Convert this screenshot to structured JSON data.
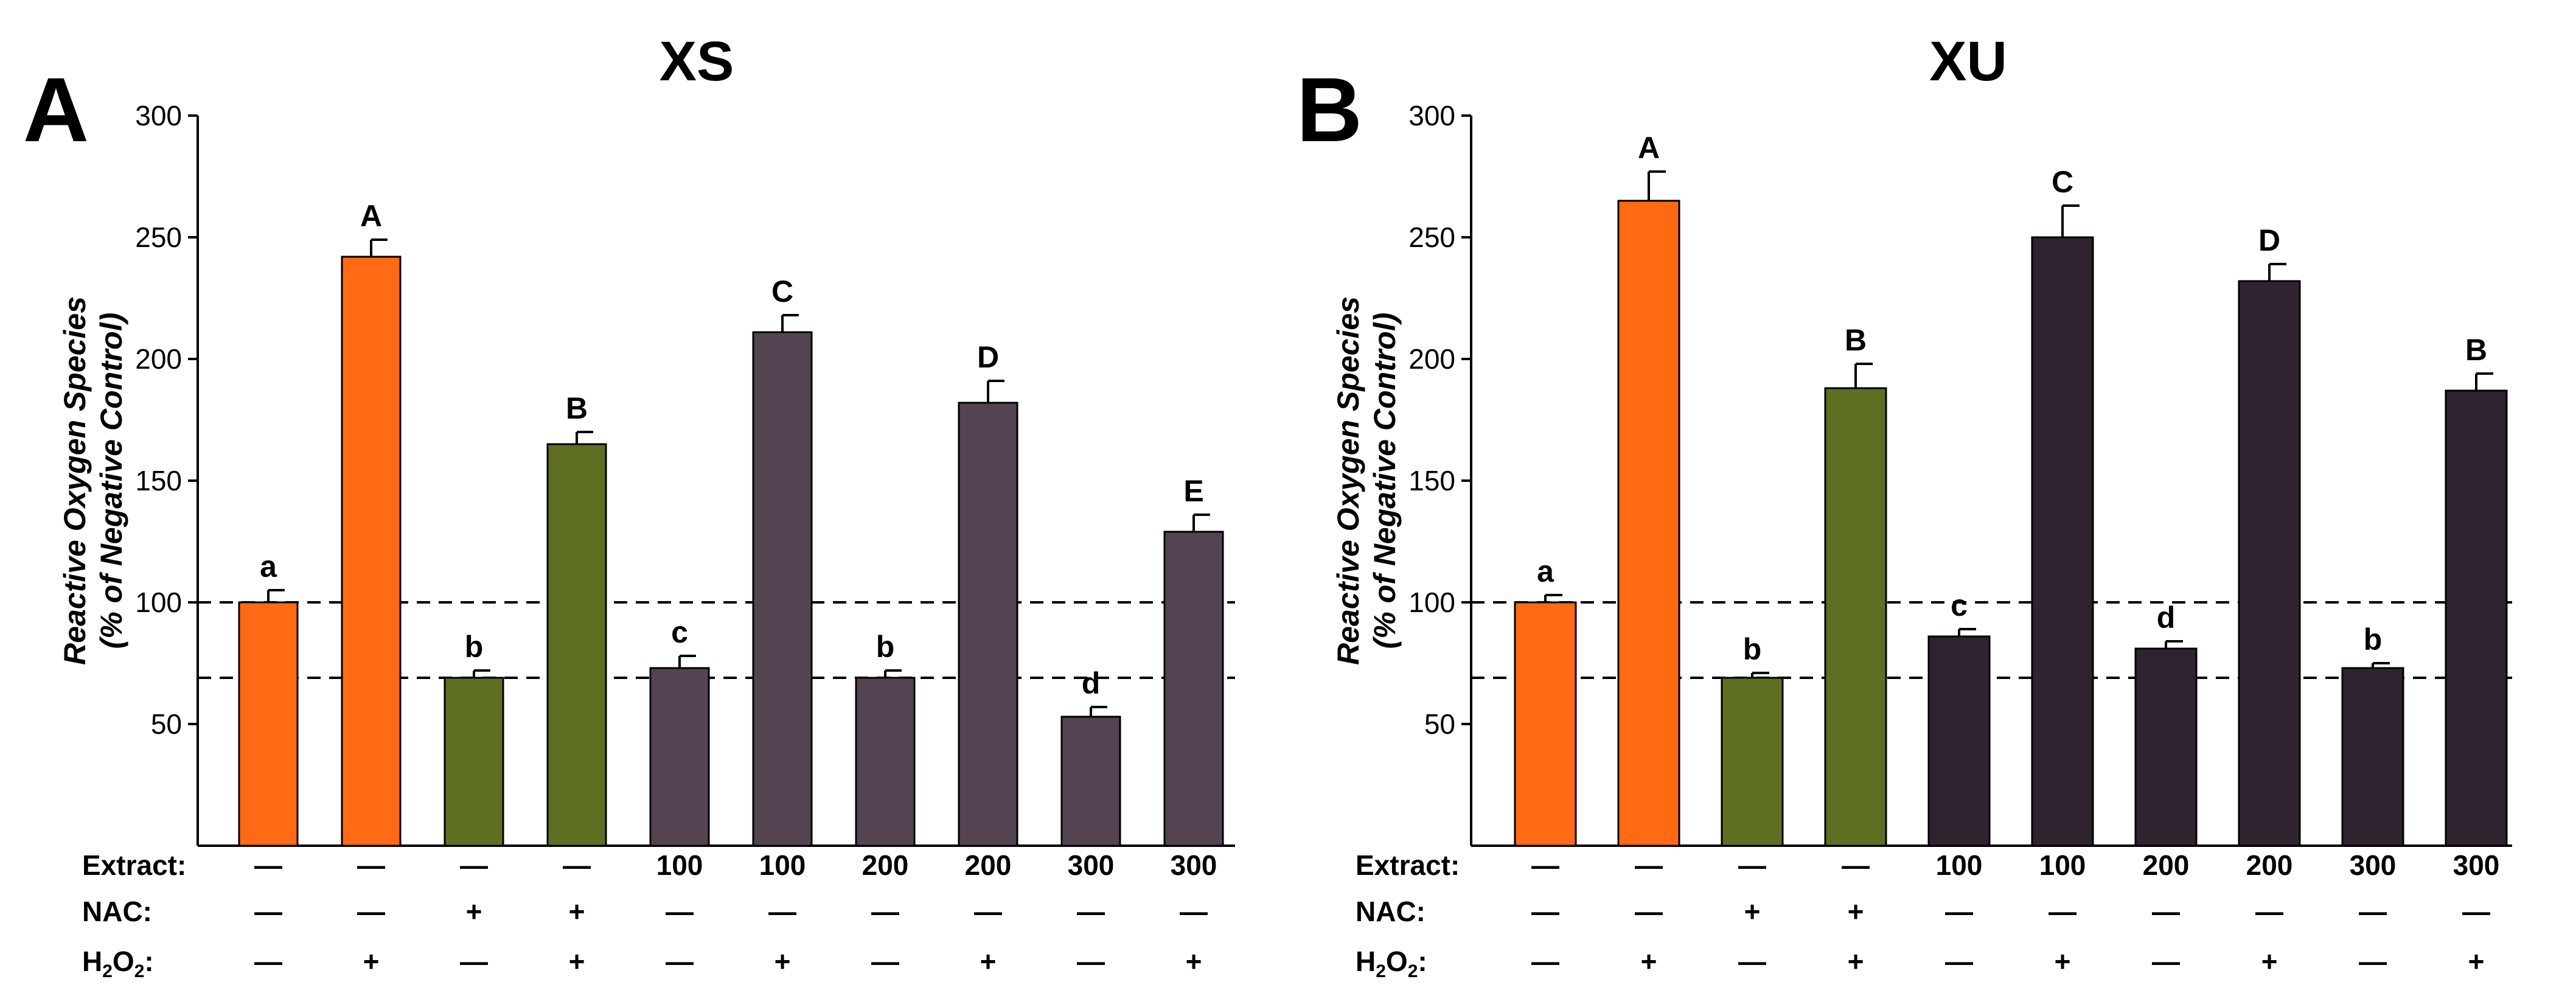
{
  "chart_data": [
    {
      "panel_label": "A",
      "title": "XS",
      "type": "bar",
      "ylabel_line1": "Reactive Oxygen Species",
      "ylabel_line2": "(% of Negative Control)",
      "ylim": [
        0,
        300
      ],
      "yticks": [
        50,
        100,
        150,
        200,
        250,
        300
      ],
      "reference_lines": [
        100,
        69
      ],
      "values": [
        100,
        242,
        69,
        165,
        73,
        211,
        69,
        182,
        53,
        129
      ],
      "errors": [
        5,
        7,
        3,
        5,
        5,
        7,
        3,
        9,
        4,
        7
      ],
      "significance_letters": [
        "a",
        "A",
        "b",
        "B",
        "c",
        "C",
        "b",
        "D",
        "d",
        "E"
      ],
      "bar_colors": [
        "#FF6A13",
        "#FF6A13",
        "#5F6F22",
        "#5F6F22",
        "#544452",
        "#544452",
        "#544452",
        "#544452",
        "#544452",
        "#544452"
      ],
      "treatments": [
        {
          "label": "Extract:",
          "values": [
            "—",
            "—",
            "—",
            "—",
            "100",
            "100",
            "200",
            "200",
            "300",
            "300"
          ]
        },
        {
          "label": "NAC:",
          "values": [
            "—",
            "—",
            "+",
            "+",
            "—",
            "—",
            "—",
            "—",
            "—",
            "—"
          ]
        },
        {
          "label": "H2O2:",
          "values": [
            "—",
            "+",
            "—",
            "+",
            "—",
            "+",
            "—",
            "+",
            "—",
            "+"
          ]
        }
      ]
    },
    {
      "panel_label": "B",
      "title": "XU",
      "type": "bar",
      "ylabel_line1": "Reactive Oxygen Species",
      "ylabel_line2": "(% of Negative Control)",
      "ylim": [
        0,
        300
      ],
      "yticks": [
        50,
        100,
        150,
        200,
        250,
        300
      ],
      "reference_lines": [
        100,
        69
      ],
      "values": [
        100,
        265,
        69,
        188,
        86,
        250,
        81,
        232,
        73,
        187
      ],
      "errors": [
        3,
        12,
        2,
        10,
        3,
        13,
        3,
        7,
        2,
        7
      ],
      "significance_letters": [
        "a",
        "A",
        "b",
        "B",
        "c",
        "C",
        "d",
        "D",
        "b",
        "B"
      ],
      "bar_colors": [
        "#FF6A13",
        "#FF6A13",
        "#5F6F22",
        "#5F6F22",
        "#2F2330",
        "#2F2330",
        "#2F2330",
        "#2F2330",
        "#2F2330",
        "#2F2330"
      ],
      "treatments": [
        {
          "label": "Extract:",
          "values": [
            "—",
            "—",
            "—",
            "—",
            "100",
            "100",
            "200",
            "200",
            "300",
            "300"
          ]
        },
        {
          "label": "NAC:",
          "values": [
            "—",
            "—",
            "+",
            "+",
            "—",
            "—",
            "—",
            "—",
            "—",
            "—"
          ]
        },
        {
          "label": "H2O2:",
          "values": [
            "—",
            "+",
            "—",
            "+",
            "—",
            "+",
            "—",
            "+",
            "—",
            "+"
          ]
        }
      ]
    }
  ]
}
